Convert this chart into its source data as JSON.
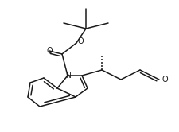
{
  "bg_color": "#ffffff",
  "line_color": "#1a1a1a",
  "line_width": 1.1,
  "figsize": [
    2.25,
    1.66
  ],
  "dpi": 100,
  "xlim": [
    0,
    225
  ],
  "ylim": [
    0,
    166
  ]
}
